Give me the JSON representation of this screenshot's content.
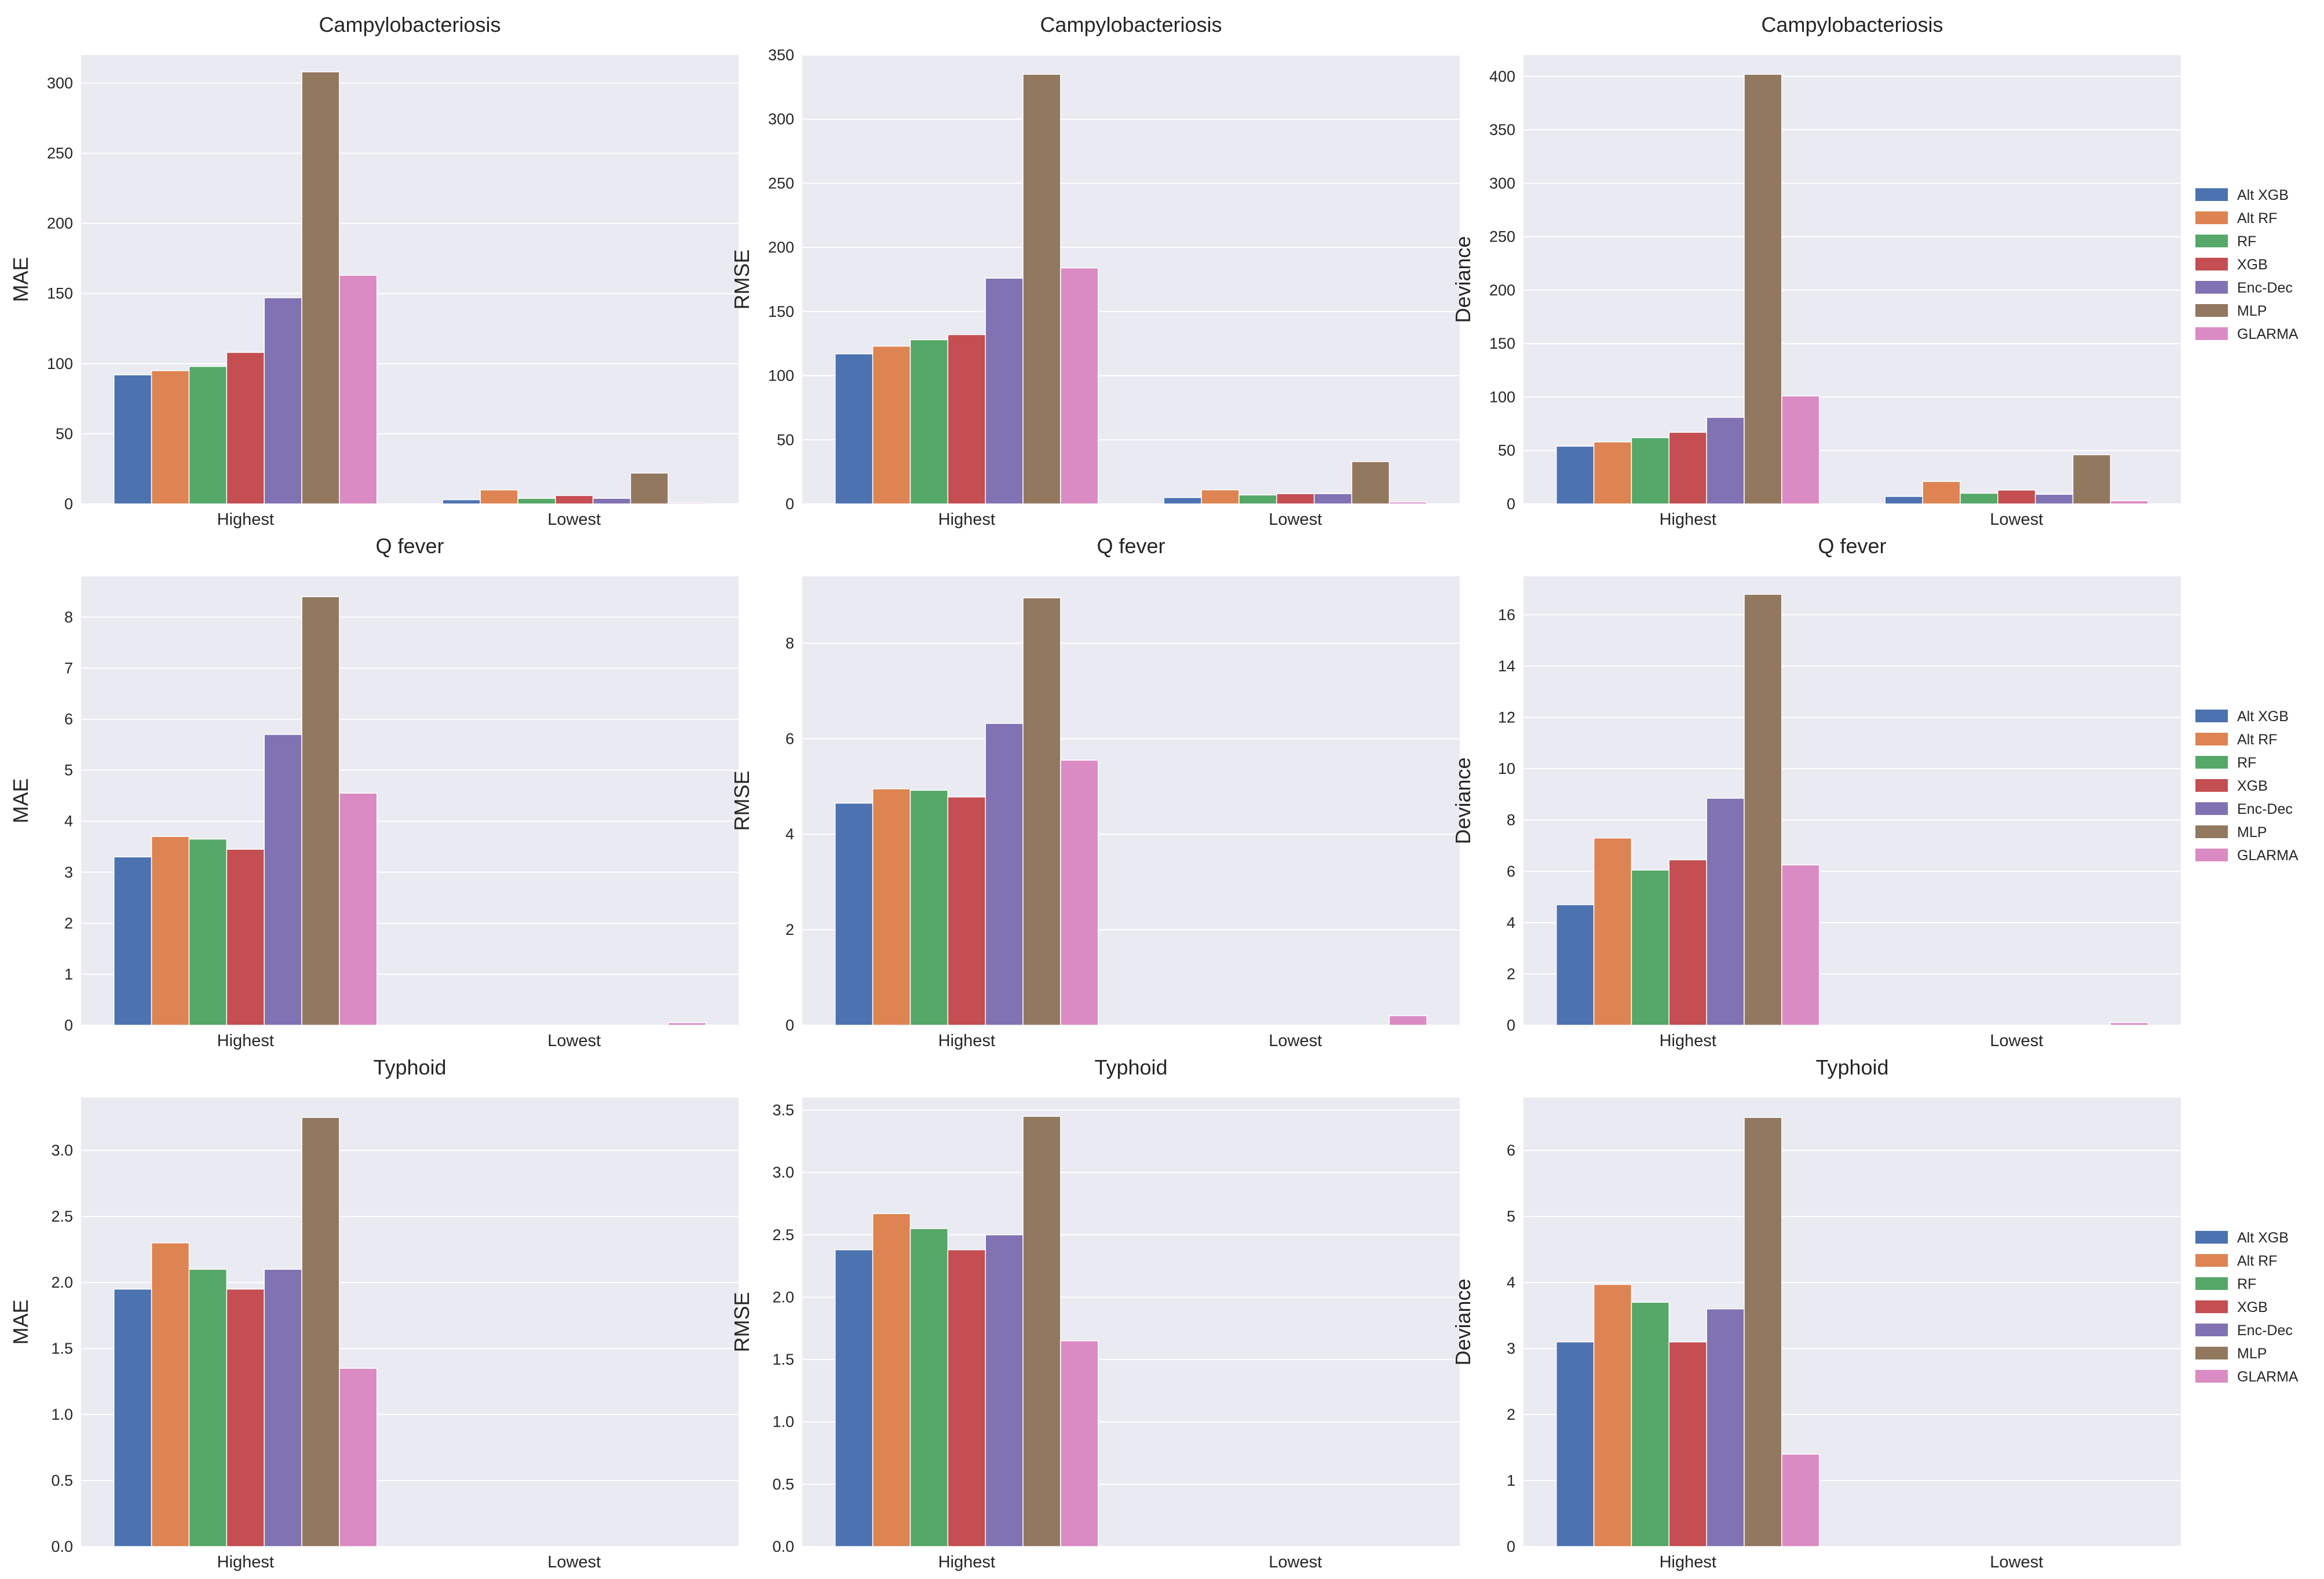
{
  "colors": [
    "#4c72b0",
    "#dd8452",
    "#55a868",
    "#c44e52",
    "#8172b3",
    "#937860",
    "#da8bc3"
  ],
  "chart_data": [
    {
      "type": "bar",
      "title": "Campylobacteriosis",
      "xlabel": "",
      "ylabel": "MAE",
      "ylim": [
        0,
        320
      ],
      "yticks": [
        0,
        50,
        100,
        150,
        200,
        250,
        300
      ],
      "categories": [
        "Highest",
        "Lowest"
      ],
      "series": [
        {
          "name": "Alt XGB",
          "values": [
            92,
            3
          ]
        },
        {
          "name": "Alt RF",
          "values": [
            95,
            10
          ]
        },
        {
          "name": "RF",
          "values": [
            98,
            4
          ]
        },
        {
          "name": "XGB",
          "values": [
            108,
            6
          ]
        },
        {
          "name": "Enc-Dec",
          "values": [
            147,
            4
          ]
        },
        {
          "name": "MLP",
          "values": [
            308,
            22
          ]
        },
        {
          "name": "GLARMA",
          "values": [
            163,
            0.8
          ]
        }
      ]
    },
    {
      "type": "bar",
      "title": "Campylobacteriosis",
      "xlabel": "",
      "ylabel": "RMSE",
      "ylim": [
        0,
        350
      ],
      "yticks": [
        0,
        50,
        100,
        150,
        200,
        250,
        300,
        350
      ],
      "categories": [
        "Highest",
        "Lowest"
      ],
      "series": [
        {
          "name": "Alt XGB",
          "values": [
            117,
            5
          ]
        },
        {
          "name": "Alt RF",
          "values": [
            123,
            11
          ]
        },
        {
          "name": "RF",
          "values": [
            128,
            7
          ]
        },
        {
          "name": "XGB",
          "values": [
            132,
            8
          ]
        },
        {
          "name": "Enc-Dec",
          "values": [
            176,
            8
          ]
        },
        {
          "name": "MLP",
          "values": [
            335,
            33
          ]
        },
        {
          "name": "GLARMA",
          "values": [
            184,
            1.5
          ]
        }
      ]
    },
    {
      "type": "bar",
      "title": "Campylobacteriosis",
      "xlabel": "",
      "ylabel": "Deviance",
      "ylim": [
        0,
        420
      ],
      "yticks": [
        0,
        50,
        100,
        150,
        200,
        250,
        300,
        350,
        400
      ],
      "categories": [
        "Highest",
        "Lowest"
      ],
      "series": [
        {
          "name": "Alt XGB",
          "values": [
            54,
            7
          ]
        },
        {
          "name": "Alt RF",
          "values": [
            58,
            21
          ]
        },
        {
          "name": "RF",
          "values": [
            62,
            10
          ]
        },
        {
          "name": "XGB",
          "values": [
            67,
            13
          ]
        },
        {
          "name": "Enc-Dec",
          "values": [
            81,
            9
          ]
        },
        {
          "name": "MLP",
          "values": [
            402,
            46
          ]
        },
        {
          "name": "GLARMA",
          "values": [
            101,
            3
          ]
        }
      ]
    },
    {
      "type": "bar",
      "title": "Q fever",
      "xlabel": "",
      "ylabel": "MAE",
      "ylim": [
        0,
        8.8
      ],
      "yticks": [
        0,
        1,
        2,
        3,
        4,
        5,
        6,
        7,
        8
      ],
      "categories": [
        "Highest",
        "Lowest"
      ],
      "series": [
        {
          "name": "Alt XGB",
          "values": [
            3.3,
            0
          ]
        },
        {
          "name": "Alt RF",
          "values": [
            3.7,
            0
          ]
        },
        {
          "name": "RF",
          "values": [
            3.65,
            0
          ]
        },
        {
          "name": "XGB",
          "values": [
            3.45,
            0
          ]
        },
        {
          "name": "Enc-Dec",
          "values": [
            5.7,
            0
          ]
        },
        {
          "name": "MLP",
          "values": [
            8.4,
            0
          ]
        },
        {
          "name": "GLARMA",
          "values": [
            4.55,
            0.05
          ]
        }
      ]
    },
    {
      "type": "bar",
      "title": "Q fever",
      "xlabel": "",
      "ylabel": "RMSE",
      "ylim": [
        0,
        9.4
      ],
      "yticks": [
        0,
        2,
        4,
        6,
        8
      ],
      "categories": [
        "Highest",
        "Lowest"
      ],
      "series": [
        {
          "name": "Alt XGB",
          "values": [
            4.65,
            0
          ]
        },
        {
          "name": "Alt RF",
          "values": [
            4.95,
            0
          ]
        },
        {
          "name": "RF",
          "values": [
            4.92,
            0
          ]
        },
        {
          "name": "XGB",
          "values": [
            4.78,
            0
          ]
        },
        {
          "name": "Enc-Dec",
          "values": [
            6.32,
            0
          ]
        },
        {
          "name": "MLP",
          "values": [
            8.95,
            0
          ]
        },
        {
          "name": "GLARMA",
          "values": [
            5.55,
            0.2
          ]
        }
      ]
    },
    {
      "type": "bar",
      "title": "Q fever",
      "xlabel": "",
      "ylabel": "Deviance",
      "ylim": [
        0,
        17.5
      ],
      "yticks": [
        0,
        2,
        4,
        6,
        8,
        10,
        12,
        14,
        16
      ],
      "categories": [
        "Highest",
        "Lowest"
      ],
      "series": [
        {
          "name": "Alt XGB",
          "values": [
            4.7,
            0
          ]
        },
        {
          "name": "Alt RF",
          "values": [
            7.3,
            0
          ]
        },
        {
          "name": "RF",
          "values": [
            6.05,
            0
          ]
        },
        {
          "name": "XGB",
          "values": [
            6.45,
            0
          ]
        },
        {
          "name": "Enc-Dec",
          "values": [
            8.85,
            0
          ]
        },
        {
          "name": "MLP",
          "values": [
            16.8,
            0
          ]
        },
        {
          "name": "GLARMA",
          "values": [
            6.25,
            0.1
          ]
        }
      ]
    },
    {
      "type": "bar",
      "title": "Typhoid",
      "xlabel": "",
      "ylabel": "MAE",
      "ylim": [
        0,
        3.4
      ],
      "yticks": [
        0.0,
        0.5,
        1.0,
        1.5,
        2.0,
        2.5,
        3.0
      ],
      "categories": [
        "Highest",
        "Lowest"
      ],
      "series": [
        {
          "name": "Alt XGB",
          "values": [
            1.95,
            0
          ]
        },
        {
          "name": "Alt RF",
          "values": [
            2.3,
            0
          ]
        },
        {
          "name": "RF",
          "values": [
            2.1,
            0
          ]
        },
        {
          "name": "XGB",
          "values": [
            1.95,
            0
          ]
        },
        {
          "name": "Enc-Dec",
          "values": [
            2.1,
            0
          ]
        },
        {
          "name": "MLP",
          "values": [
            3.25,
            0
          ]
        },
        {
          "name": "GLARMA",
          "values": [
            1.35,
            0
          ]
        }
      ]
    },
    {
      "type": "bar",
      "title": "Typhoid",
      "xlabel": "",
      "ylabel": "RMSE",
      "ylim": [
        0,
        3.6
      ],
      "yticks": [
        0.0,
        0.5,
        1.0,
        1.5,
        2.0,
        2.5,
        3.0,
        3.5
      ],
      "categories": [
        "Highest",
        "Lowest"
      ],
      "series": [
        {
          "name": "Alt XGB",
          "values": [
            2.38,
            0
          ]
        },
        {
          "name": "Alt RF",
          "values": [
            2.67,
            0
          ]
        },
        {
          "name": "RF",
          "values": [
            2.55,
            0
          ]
        },
        {
          "name": "XGB",
          "values": [
            2.38,
            0
          ]
        },
        {
          "name": "Enc-Dec",
          "values": [
            2.5,
            0
          ]
        },
        {
          "name": "MLP",
          "values": [
            3.45,
            0
          ]
        },
        {
          "name": "GLARMA",
          "values": [
            1.65,
            0
          ]
        }
      ]
    },
    {
      "type": "bar",
      "title": "Typhoid",
      "xlabel": "",
      "ylabel": "Deviance",
      "ylim": [
        0,
        6.8
      ],
      "yticks": [
        0,
        1,
        2,
        3,
        4,
        5,
        6
      ],
      "categories": [
        "Highest",
        "Lowest"
      ],
      "series": [
        {
          "name": "Alt XGB",
          "values": [
            3.1,
            0
          ]
        },
        {
          "name": "Alt RF",
          "values": [
            3.97,
            0
          ]
        },
        {
          "name": "RF",
          "values": [
            3.7,
            0
          ]
        },
        {
          "name": "XGB",
          "values": [
            3.1,
            0
          ]
        },
        {
          "name": "Enc-Dec",
          "values": [
            3.6,
            0
          ]
        },
        {
          "name": "MLP",
          "values": [
            6.5,
            0
          ]
        },
        {
          "name": "GLARMA",
          "values": [
            1.4,
            0
          ]
        }
      ]
    }
  ],
  "legends": [
    [
      "Alt XGB",
      "Alt RF",
      "RF",
      "XGB",
      "Enc-Dec",
      "MLP",
      "GLARMA"
    ],
    [
      "Alt XGB",
      "Alt RF",
      "RF",
      "XGB",
      "Enc-Dec",
      "MLP",
      "GLARMA"
    ],
    [
      "Alt XGB",
      "Alt RF",
      "RF",
      "XGB",
      "Enc-Dec",
      "MLP",
      "GLARMA"
    ]
  ]
}
